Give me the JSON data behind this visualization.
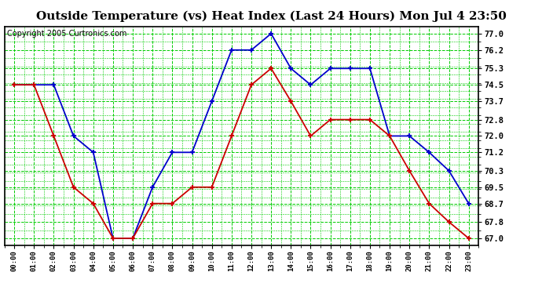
{
  "title": "Outside Temperature (vs) Heat Index (Last 24 Hours) Mon Jul 4 23:50",
  "copyright": "Copyright 2005 Curtronics.com",
  "hours": [
    "00:00",
    "01:00",
    "02:00",
    "03:00",
    "04:00",
    "05:00",
    "06:00",
    "07:00",
    "08:00",
    "09:00",
    "10:00",
    "11:00",
    "12:00",
    "13:00",
    "14:00",
    "15:00",
    "16:00",
    "17:00",
    "18:00",
    "19:00",
    "20:00",
    "21:00",
    "22:00",
    "23:00"
  ],
  "blue_data": [
    74.5,
    74.5,
    74.5,
    72.0,
    71.2,
    67.0,
    67.0,
    69.5,
    71.2,
    71.2,
    73.7,
    76.2,
    76.2,
    77.0,
    75.3,
    74.5,
    75.3,
    75.3,
    75.3,
    72.0,
    72.0,
    71.2,
    70.3,
    68.7
  ],
  "red_data": [
    74.5,
    74.5,
    72.0,
    69.5,
    68.7,
    67.0,
    67.0,
    68.7,
    68.7,
    69.5,
    69.5,
    72.0,
    74.5,
    75.3,
    73.7,
    72.0,
    72.8,
    72.8,
    72.8,
    72.0,
    70.3,
    68.7,
    67.8,
    67.0
  ],
  "blue_color": "#0000cc",
  "red_color": "#cc0000",
  "grid_color": "#00cc00",
  "bg_color": "#ffffff",
  "plot_bg": "#ffffff",
  "yticks": [
    67.0,
    67.8,
    68.7,
    69.5,
    70.3,
    71.2,
    72.0,
    72.8,
    73.7,
    74.5,
    75.3,
    76.2,
    77.0
  ],
  "ylim_min": 66.65,
  "ylim_max": 77.35,
  "title_fontsize": 11,
  "copyright_fontsize": 7
}
